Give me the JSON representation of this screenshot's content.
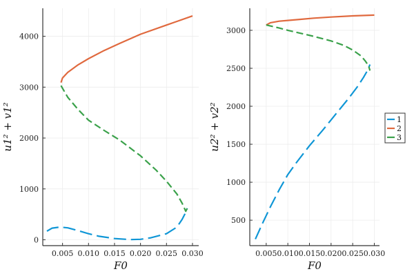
{
  "colors": {
    "series1": "#0f96d6",
    "series2": "#e0693e",
    "series3": "#3aa14a",
    "grid": "#ececec",
    "axis": "#333333"
  },
  "legend": {
    "placement": "right",
    "entries": [
      "1",
      "2",
      "3"
    ]
  },
  "chart_data": [
    {
      "type": "line",
      "xlabel": "F0",
      "ylabel": "u1² + v1²",
      "xlim": [
        0.0012,
        0.0312
      ],
      "ylim": [
        -115,
        4550
      ],
      "xticks": [
        "0.005",
        "0.010",
        "0.015",
        "0.020",
        "0.025",
        "0.030"
      ],
      "yticks": [
        "0",
        "1000",
        "2000",
        "3000",
        "4000"
      ],
      "grid": true,
      "series": [
        {
          "name": "1",
          "dash": "dashed-long",
          "x": [
            0.002,
            0.003,
            0.0045,
            0.006,
            0.008,
            0.01,
            0.012,
            0.015,
            0.018,
            0.02,
            0.022,
            0.025,
            0.027,
            0.028,
            0.0285,
            0.029
          ],
          "y": [
            170,
            230,
            250,
            235,
            180,
            120,
            70,
            25,
            5,
            10,
            40,
            120,
            250,
            400,
            500,
            620
          ]
        },
        {
          "name": "2",
          "dash": "solid",
          "x": [
            0.0047,
            0.005,
            0.006,
            0.008,
            0.01,
            0.013,
            0.016,
            0.02,
            0.025,
            0.03
          ],
          "y": [
            3090,
            3180,
            3290,
            3440,
            3560,
            3720,
            3860,
            4040,
            4220,
            4400
          ]
        },
        {
          "name": "3",
          "dash": "dashed",
          "x": [
            0.0047,
            0.006,
            0.008,
            0.01,
            0.013,
            0.016,
            0.02,
            0.023,
            0.025,
            0.027,
            0.028,
            0.0287,
            0.029
          ],
          "y": [
            3030,
            2800,
            2560,
            2350,
            2150,
            1960,
            1650,
            1370,
            1150,
            900,
            720,
            560,
            620
          ]
        }
      ]
    },
    {
      "type": "line",
      "xlabel": "F0",
      "ylabel": "u2² + v2²",
      "xlim": [
        0.0012,
        0.0312
      ],
      "ylim": [
        165,
        3290
      ],
      "xticks": [
        "0.005",
        "0.010",
        "0.015",
        "0.020",
        "0.025",
        "0.030"
      ],
      "yticks": [
        "500",
        "1000",
        "1500",
        "2000",
        "2500",
        "3000"
      ],
      "grid": true,
      "series": [
        {
          "name": "1",
          "dash": "dashed-long",
          "x": [
            0.0025,
            0.004,
            0.006,
            0.008,
            0.01,
            0.012,
            0.015,
            0.018,
            0.02,
            0.022,
            0.024,
            0.026,
            0.0275,
            0.0285,
            0.029
          ],
          "y": [
            250,
            440,
            680,
            900,
            1100,
            1260,
            1480,
            1680,
            1820,
            1960,
            2100,
            2250,
            2380,
            2480,
            2550
          ]
        },
        {
          "name": "2",
          "dash": "solid",
          "x": [
            0.005,
            0.006,
            0.008,
            0.01,
            0.013,
            0.016,
            0.02,
            0.025,
            0.03
          ],
          "y": [
            3070,
            3100,
            3120,
            3130,
            3145,
            3160,
            3175,
            3190,
            3200
          ]
        },
        {
          "name": "3",
          "dash": "dashed",
          "x": [
            0.005,
            0.008,
            0.01,
            0.013,
            0.016,
            0.02,
            0.023,
            0.025,
            0.027,
            0.028,
            0.0287,
            0.029
          ],
          "y": [
            3070,
            3030,
            3000,
            2960,
            2920,
            2860,
            2800,
            2740,
            2660,
            2590,
            2530,
            2470
          ]
        }
      ]
    }
  ]
}
